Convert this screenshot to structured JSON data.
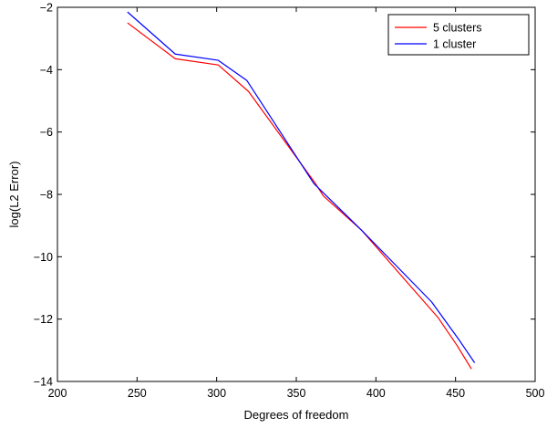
{
  "chart_data": {
    "type": "line",
    "xlabel": "Degrees of freedom",
    "ylabel": "log(L2 Error)",
    "xlim": [
      200,
      500
    ],
    "ylim": [
      -14,
      -2
    ],
    "xticks": [
      200,
      250,
      300,
      350,
      400,
      450,
      500
    ],
    "yticks": [
      -14,
      -12,
      -10,
      -8,
      -6,
      -4,
      -2
    ],
    "grid": false,
    "legend_position": "top-right",
    "series": [
      {
        "name": "5 clusters",
        "color": "#ff0000",
        "points": [
          [
            244,
            -2.5
          ],
          [
            274,
            -3.65
          ],
          [
            301,
            -3.85
          ],
          [
            320,
            -4.7
          ],
          [
            362,
            -7.65
          ],
          [
            367,
            -8.05
          ],
          [
            391,
            -9.15
          ],
          [
            439,
            -11.95
          ],
          [
            451,
            -12.85
          ],
          [
            460,
            -13.6
          ]
        ]
      },
      {
        "name": "1 cluster",
        "color": "#0000ff",
        "points": [
          [
            244,
            -2.15
          ],
          [
            274,
            -3.5
          ],
          [
            301,
            -3.7
          ],
          [
            319,
            -4.35
          ],
          [
            361,
            -7.65
          ],
          [
            367,
            -7.95
          ],
          [
            391,
            -9.15
          ],
          [
            435,
            -11.45
          ],
          [
            452,
            -12.65
          ],
          [
            462,
            -13.4
          ]
        ]
      }
    ]
  }
}
